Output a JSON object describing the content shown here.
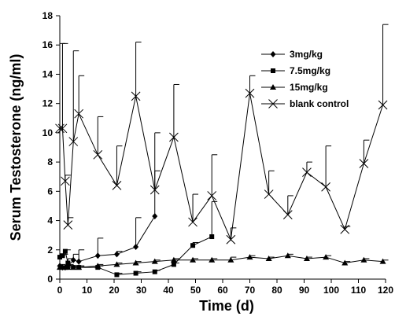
{
  "chart_data": {
    "type": "line",
    "title": "",
    "xlabel": "Time (d)",
    "ylabel": "Serum Testosterone (ng/ml)",
    "xlim": [
      0,
      120
    ],
    "ylim": [
      0,
      18
    ],
    "xticks": [
      0,
      10,
      20,
      30,
      40,
      50,
      60,
      70,
      80,
      90,
      100,
      110,
      120
    ],
    "yticks": [
      0,
      2,
      4,
      6,
      8,
      10,
      12,
      14,
      16,
      18
    ],
    "grid": false,
    "legend_position": "top-right",
    "series": [
      {
        "name": "3mg/kg",
        "marker": "diamond",
        "x": [
          0,
          1,
          2,
          3,
          5,
          7,
          14,
          21,
          28,
          35
        ],
        "y": [
          0.9,
          0.8,
          0.8,
          0.9,
          1.3,
          1.2,
          1.6,
          1.7,
          2.2,
          4.3
        ],
        "err": [
          0.1,
          0.1,
          0.1,
          0.1,
          0.4,
          0.8,
          1.2,
          0.2,
          2.0,
          3.1
        ]
      },
      {
        "name": "7.5mg/kg",
        "marker": "square",
        "x": [
          0,
          1,
          2,
          3,
          5,
          7,
          14,
          21,
          28,
          35,
          42,
          49,
          56
        ],
        "y": [
          1.5,
          1.6,
          1.9,
          1.1,
          0.8,
          0.8,
          0.8,
          0.3,
          0.4,
          0.5,
          1.0,
          2.3,
          2.9
        ],
        "err": [
          0.1,
          0.1,
          0.1,
          0.3,
          0.1,
          0.1,
          0.1,
          0.1,
          0.1,
          0.1,
          0.1,
          0.2,
          2.4
        ]
      },
      {
        "name": "15mg/kg",
        "marker": "triangle",
        "x": [
          0,
          1,
          2,
          3,
          5,
          7,
          14,
          21,
          28,
          35,
          42,
          49,
          56,
          63,
          70,
          77,
          84,
          91,
          98,
          105,
          112,
          119
        ],
        "y": [
          0.8,
          0.8,
          0.8,
          0.8,
          0.8,
          0.8,
          0.9,
          1.0,
          1.1,
          1.2,
          1.3,
          1.3,
          1.3,
          1.3,
          1.5,
          1.4,
          1.6,
          1.4,
          1.5,
          1.1,
          1.3,
          1.2
        ],
        "err": [
          0.1,
          0.1,
          0.1,
          0.1,
          0.1,
          0.1,
          0.1,
          0.1,
          0.1,
          0.1,
          0.1,
          0.1,
          0.1,
          0.2,
          0.1,
          0.1,
          0.1,
          0.1,
          0.1,
          0.1,
          0.1,
          0.1
        ]
      },
      {
        "name": "blank control",
        "marker": "x",
        "x": [
          0,
          1,
          2,
          3,
          5,
          7,
          14,
          21,
          28,
          35,
          42,
          49,
          56,
          63,
          70,
          77,
          84,
          91,
          98,
          105,
          112,
          119
        ],
        "y": [
          10.3,
          10.3,
          6.7,
          3.7,
          9.4,
          11.3,
          8.5,
          6.4,
          12.5,
          6.1,
          9.7,
          3.9,
          5.7,
          2.7,
          12.7,
          5.8,
          4.4,
          7.3,
          6.3,
          3.4,
          7.9,
          11.9
        ],
        "err": [
          5.8,
          5.8,
          0.4,
          0.5,
          6.2,
          2.6,
          2.6,
          2.7,
          3.7,
          3.9,
          3.6,
          1.9,
          2.8,
          0.8,
          1.2,
          1.6,
          1.3,
          0.7,
          2.8,
          0.2,
          1.6,
          5.5
        ]
      }
    ]
  }
}
